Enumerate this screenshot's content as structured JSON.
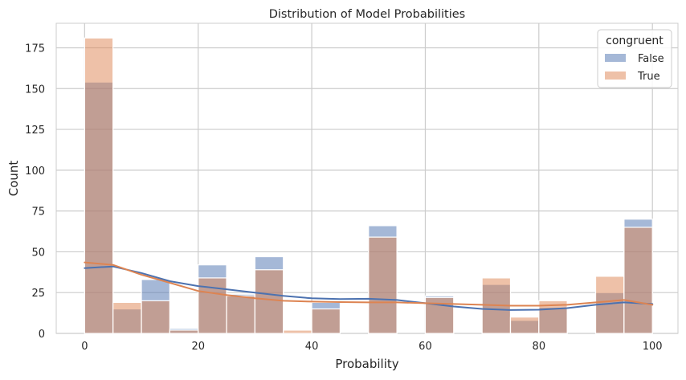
{
  "chart_data": {
    "type": "bar",
    "title": "Distribution of Model Probabilities",
    "xlabel": "Probability",
    "ylabel": "Count",
    "xlim": [
      -5,
      104.5
    ],
    "ylim": [
      0,
      190
    ],
    "xticks": [
      0,
      20,
      40,
      60,
      80,
      100
    ],
    "yticks": [
      0,
      25,
      50,
      75,
      100,
      125,
      150,
      175
    ],
    "grid": true,
    "bin_edges": [
      0,
      5,
      10,
      15,
      20,
      25,
      30,
      35,
      40,
      45,
      50,
      55,
      60,
      65,
      70,
      75,
      80,
      85,
      90,
      95,
      100
    ],
    "legend": {
      "title": "congruent",
      "position": "top-right"
    },
    "series": [
      {
        "name": "False",
        "color": "#4c72b0",
        "values": [
          154,
          15,
          33,
          3,
          42,
          24,
          47,
          0,
          19,
          0,
          66,
          0,
          23,
          0,
          30,
          8,
          16,
          0,
          25,
          70
        ],
        "kde": [
          [
            0,
            40
          ],
          [
            5,
            41
          ],
          [
            10,
            37
          ],
          [
            15,
            32
          ],
          [
            20,
            29
          ],
          [
            25,
            27
          ],
          [
            30,
            25
          ],
          [
            35,
            23
          ],
          [
            40,
            21.5
          ],
          [
            45,
            21
          ],
          [
            50,
            21.2
          ],
          [
            55,
            20.5
          ],
          [
            60,
            18.5
          ],
          [
            65,
            16.5
          ],
          [
            70,
            15
          ],
          [
            75,
            14.3
          ],
          [
            80,
            14.5
          ],
          [
            85,
            15.5
          ],
          [
            90,
            17.5
          ],
          [
            95,
            19
          ],
          [
            100,
            18
          ]
        ]
      },
      {
        "name": "True",
        "color": "#dd8452",
        "values": [
          181,
          19,
          20,
          2,
          34,
          23,
          39,
          2,
          15,
          0,
          59,
          0,
          22,
          0,
          34,
          10,
          20,
          0,
          35,
          65
        ],
        "kde": [
          [
            0,
            43.5
          ],
          [
            5,
            42
          ],
          [
            10,
            36
          ],
          [
            15,
            31
          ],
          [
            20,
            26
          ],
          [
            25,
            23.5
          ],
          [
            30,
            21.5
          ],
          [
            35,
            20
          ],
          [
            40,
            19.5
          ],
          [
            45,
            19.2
          ],
          [
            50,
            19
          ],
          [
            55,
            19
          ],
          [
            60,
            18.5
          ],
          [
            65,
            18
          ],
          [
            70,
            17.5
          ],
          [
            75,
            17
          ],
          [
            80,
            17
          ],
          [
            85,
            17.5
          ],
          [
            90,
            19
          ],
          [
            95,
            20.5
          ],
          [
            100,
            17.5
          ]
        ]
      }
    ]
  }
}
